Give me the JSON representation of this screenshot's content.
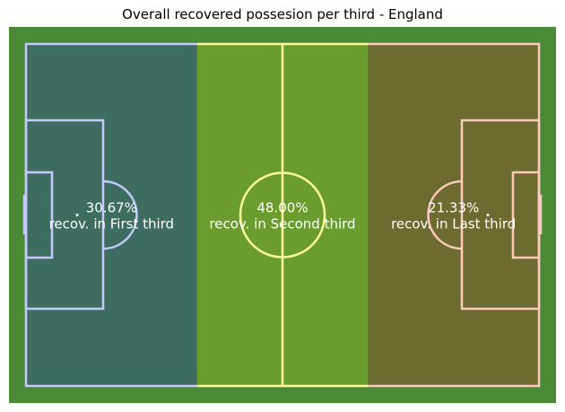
{
  "chart_data": {
    "type": "pitch-zones",
    "title": "Overall recovered possesion per third - England",
    "zones": [
      {
        "value_label": "30.67%",
        "text": "recov. in First third",
        "value": 30.67,
        "color": "#3d6d60"
      },
      {
        "value_label": "48.00%",
        "text": "recov. in Second third",
        "value": 48.0,
        "color": "#6b9d2e"
      },
      {
        "value_label": "21.33%",
        "text": "recov. in Last third",
        "value": 21.33,
        "color": "#6c6b30"
      }
    ],
    "line_colors": {
      "left": "#c7c8ff",
      "middle": "#fefc9a",
      "right": "#ffc8c0"
    },
    "grass_color": "#4a8a35"
  }
}
